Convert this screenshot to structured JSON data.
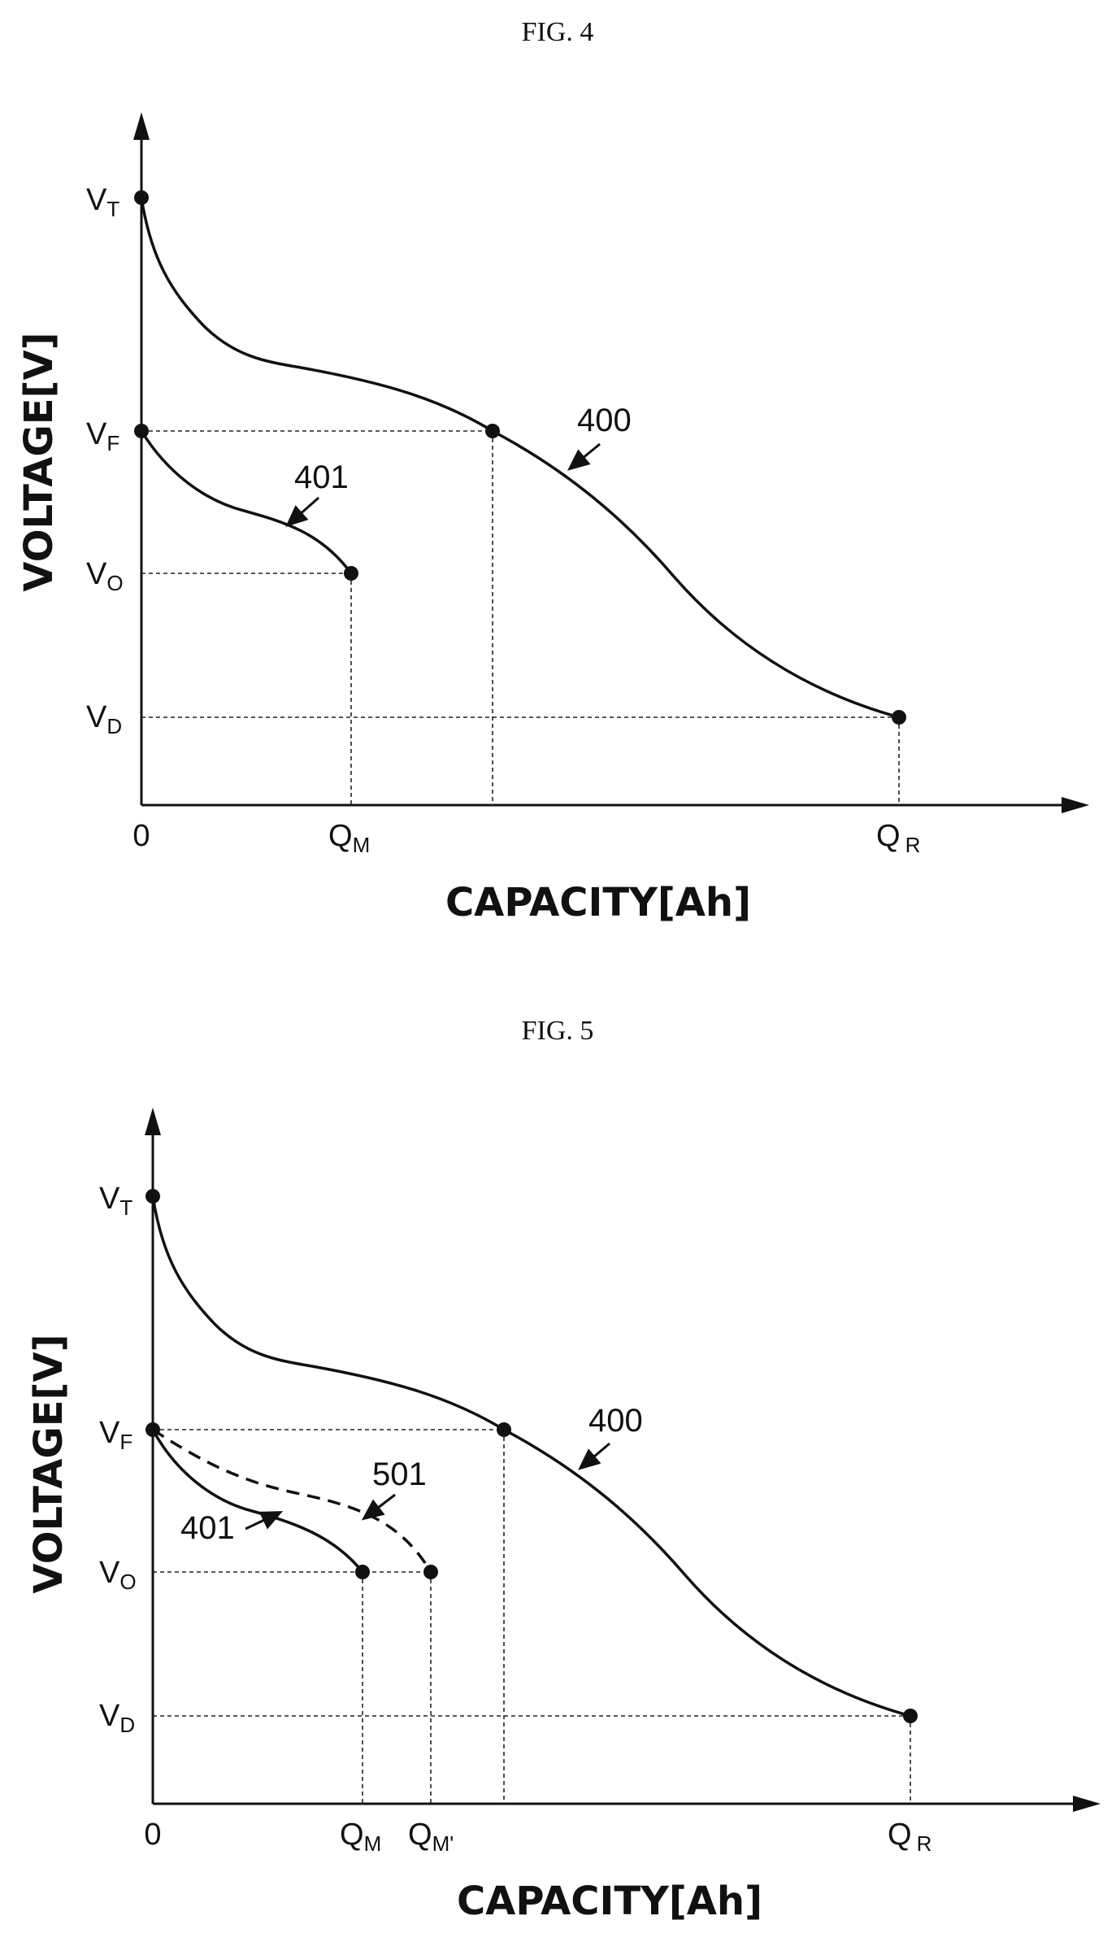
{
  "fig4": {
    "title": "FIG. 4",
    "y_axis_title": "VOLTAGE[V]",
    "x_axis_title": "CAPACITY[Ah]",
    "y_labels": {
      "vt": {
        "main": "V",
        "sub": "T"
      },
      "vf": {
        "main": "V",
        "sub": "F"
      },
      "vo": {
        "main": "V",
        "sub": "O"
      },
      "vd": {
        "main": "V",
        "sub": "D"
      }
    },
    "x_labels": {
      "origin": "0",
      "qm": {
        "main": "Q",
        "sub": "M"
      },
      "qr": {
        "main": "Q",
        "sub": "R"
      }
    },
    "curve_refs": {
      "c400": "400",
      "c401": "401"
    }
  },
  "fig5": {
    "title": "FIG. 5",
    "y_axis_title": "VOLTAGE[V]",
    "x_axis_title": "CAPACITY[Ah]",
    "y_labels": {
      "vt": {
        "main": "V",
        "sub": "T"
      },
      "vf": {
        "main": "V",
        "sub": "F"
      },
      "vo": {
        "main": "V",
        "sub": "O"
      },
      "vd": {
        "main": "V",
        "sub": "D"
      }
    },
    "x_labels": {
      "origin": "0",
      "qm": {
        "main": "Q",
        "sub": "M"
      },
      "qm_prime": {
        "main": "Q",
        "sub": "M'"
      },
      "qr": {
        "main": "Q",
        "sub": "R"
      }
    },
    "curve_refs": {
      "c400": "400",
      "c401": "401",
      "c501": "501"
    }
  }
}
